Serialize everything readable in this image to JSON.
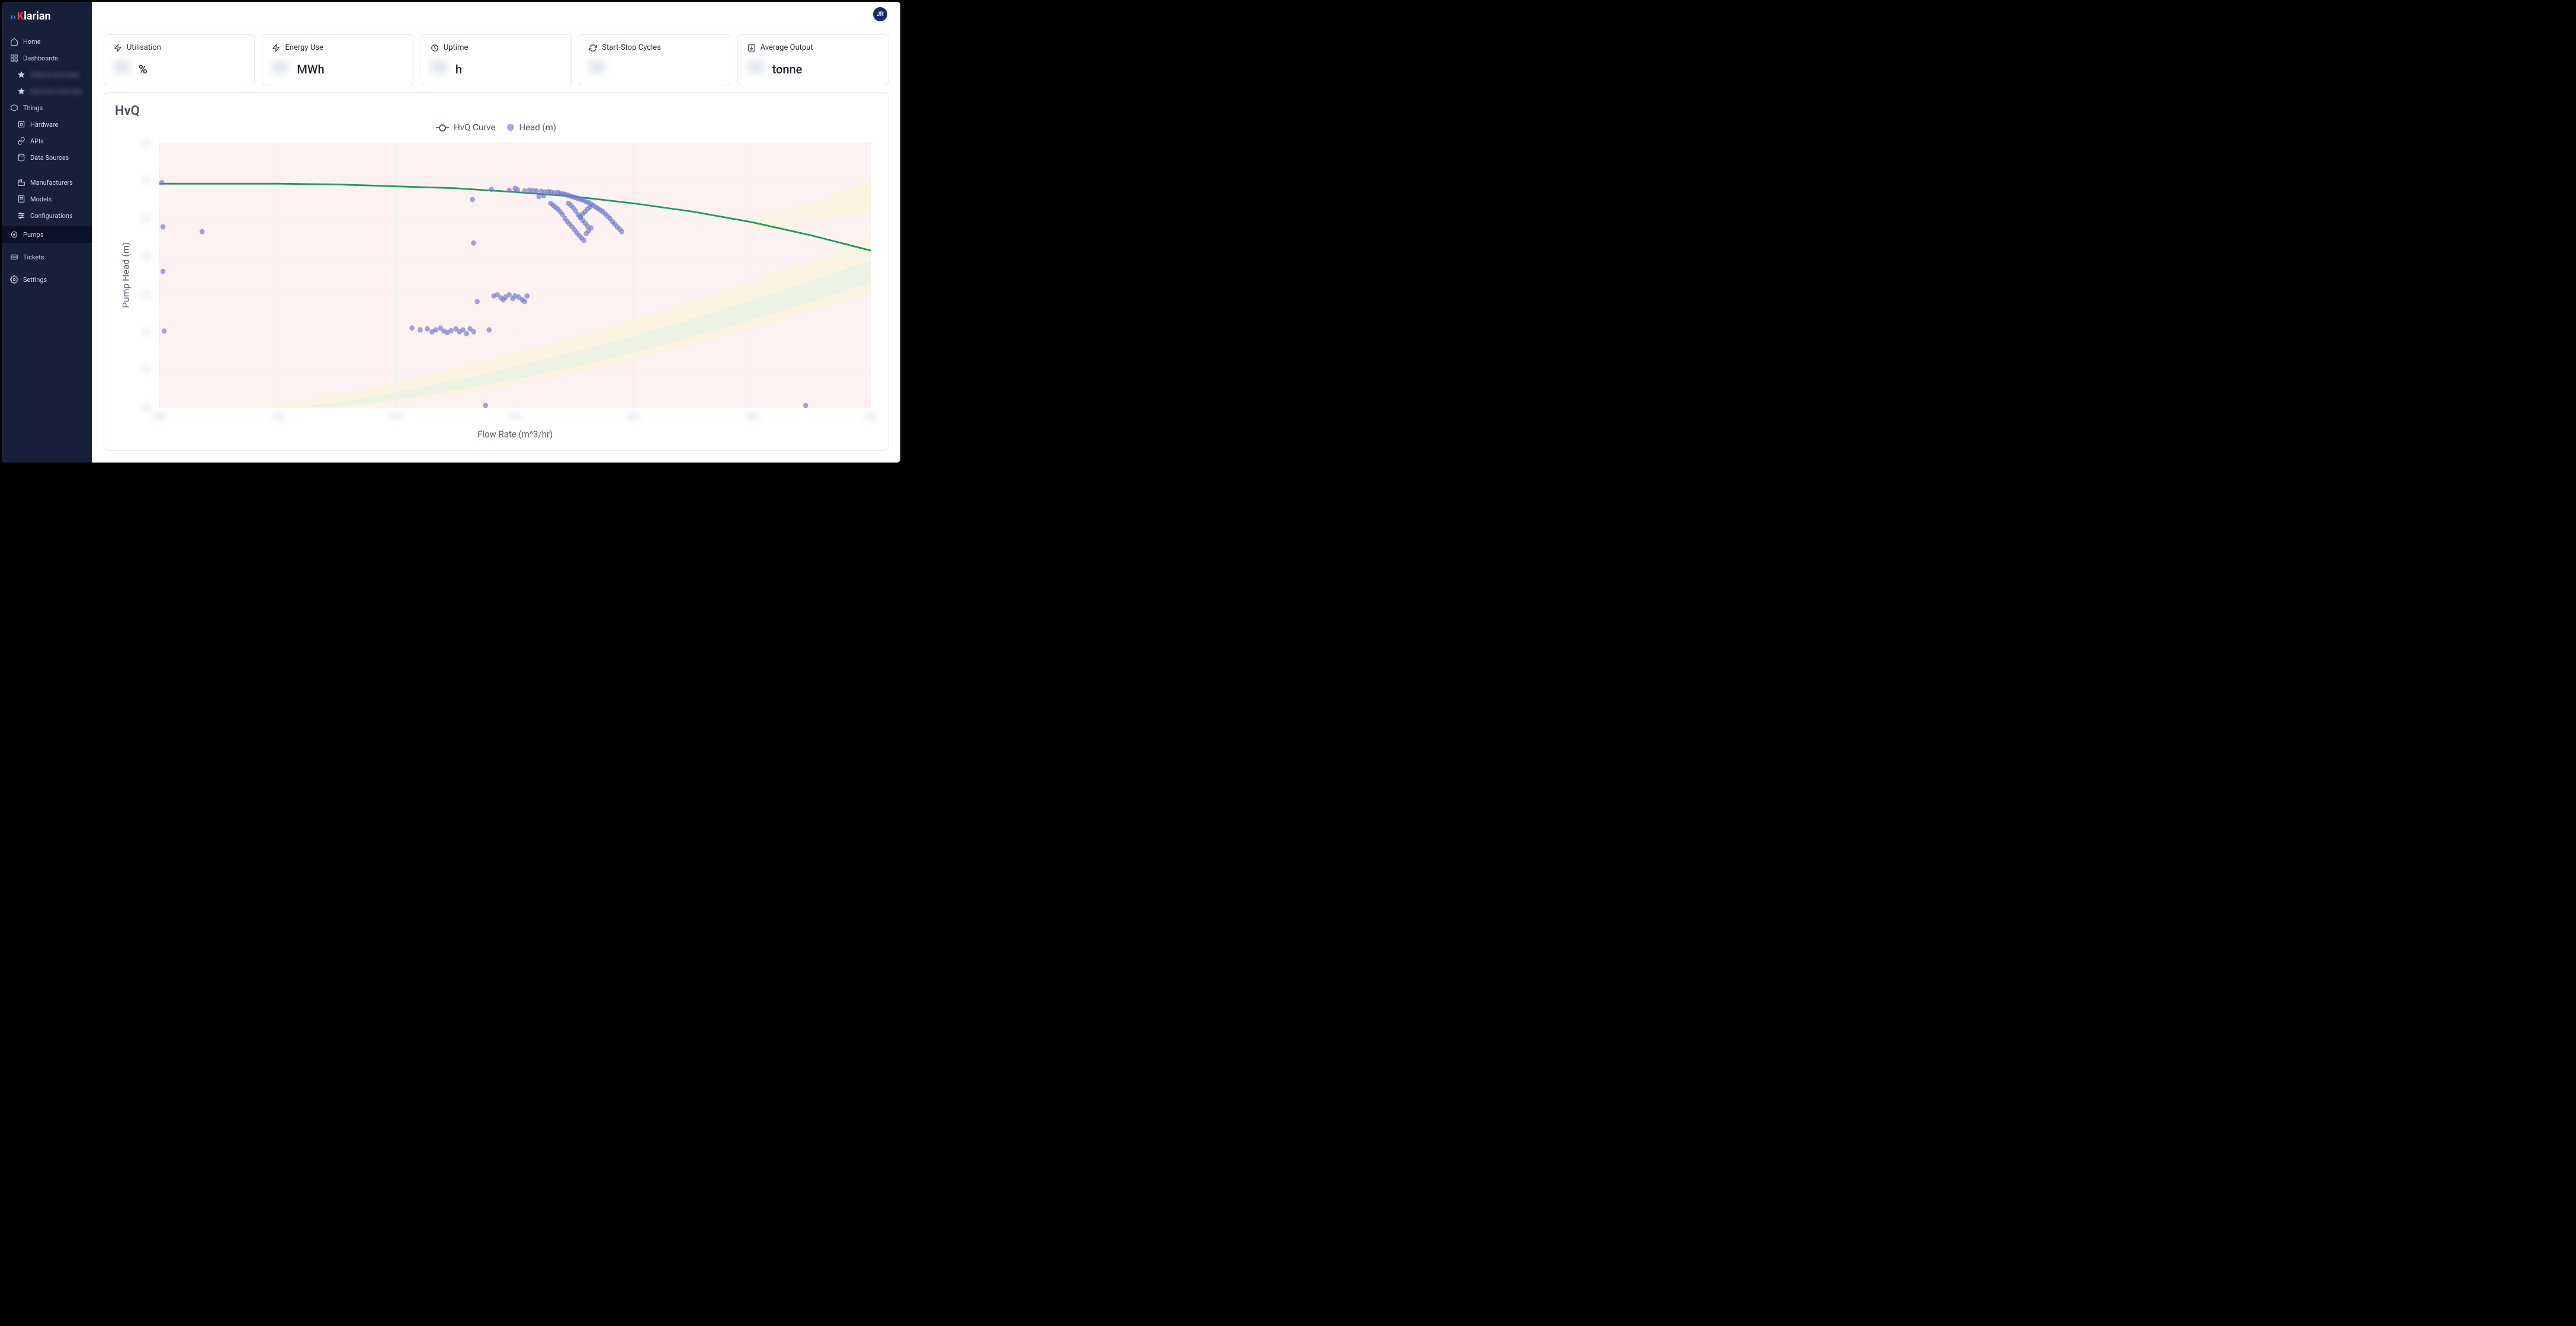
{
  "brand": {
    "name": "Klarian",
    "chev1_color": "#2cc48a",
    "chev2_color": "#3a6df0",
    "k_color": "#e63946"
  },
  "avatar": "JR",
  "sidebar": {
    "items": [
      {
        "icon": "home",
        "label": "Home"
      },
      {
        "icon": "dashboard",
        "label": "Dashboards"
      },
      {
        "icon": "star",
        "label": "Station Overview",
        "sub": true,
        "blurred": true
      },
      {
        "icon": "star",
        "label": "Network Overview",
        "sub": true,
        "blurred": true
      },
      {
        "icon": "things",
        "label": "Things"
      },
      {
        "icon": "hardware",
        "label": "Hardware",
        "sub": true
      },
      {
        "icon": "api",
        "label": "APIs",
        "sub": true
      },
      {
        "icon": "data",
        "label": "Data Sources",
        "sub": true
      },
      {
        "icon": "manufacturers",
        "label": "Manufacturers",
        "sub": true
      },
      {
        "icon": "models",
        "label": "Models",
        "sub": true
      },
      {
        "icon": "config",
        "label": "Configurations",
        "sub": true
      },
      {
        "icon": "pump",
        "label": "Pumps",
        "active": true
      },
      {
        "icon": "ticket",
        "label": "Tickets"
      },
      {
        "icon": "settings",
        "label": "Settings"
      }
    ]
  },
  "metrics": [
    {
      "icon": "bolt",
      "label": "Utilisation",
      "unit": "%"
    },
    {
      "icon": "bolt",
      "label": "Energy Use",
      "unit": "MWh"
    },
    {
      "icon": "clock",
      "label": "Uptime",
      "unit": "h"
    },
    {
      "icon": "cycles",
      "label": "Start-Stop Cycles",
      "unit": ""
    },
    {
      "icon": "output",
      "label": "Average Output",
      "unit": "tonne"
    }
  ],
  "chart": {
    "title": "HvQ",
    "legend": [
      {
        "type": "line",
        "label": "HvQ Curve",
        "color": "#1a9e5c"
      },
      {
        "type": "dot",
        "label": "Head (m)",
        "color": "#a3aee6"
      }
    ],
    "x_label": "Flow Rate (m^3/hr)",
    "y_label": "Pump Head (m)",
    "background_color": "#ffffff",
    "plot_colors": {
      "region_red": "#fbe5e5",
      "region_yellow": "#fcf6d4",
      "region_green": "#dff2e3",
      "grid": "#eef0f4",
      "curve": "#1a9e5c",
      "scatter": "#6b77cf"
    },
    "xlim": [
      0,
      6
    ],
    "ylim": [
      0,
      7
    ],
    "x_ticks": [
      0,
      1,
      2,
      3,
      4,
      5,
      6
    ],
    "y_ticks": [
      0,
      1,
      2,
      3,
      4,
      5,
      6,
      7
    ],
    "curve_points": [
      [
        0,
        5.92
      ],
      [
        0.5,
        5.92
      ],
      [
        1.0,
        5.92
      ],
      [
        1.5,
        5.9
      ],
      [
        2.0,
        5.85
      ],
      [
        2.5,
        5.8
      ],
      [
        3.0,
        5.7
      ],
      [
        3.5,
        5.58
      ],
      [
        4.0,
        5.4
      ],
      [
        4.5,
        5.18
      ],
      [
        5.0,
        4.9
      ],
      [
        5.5,
        4.55
      ],
      [
        6.0,
        4.15
      ]
    ],
    "scatter_points": [
      [
        0.02,
        5.95
      ],
      [
        0.03,
        4.78
      ],
      [
        0.03,
        3.6
      ],
      [
        0.04,
        2.02
      ],
      [
        0.36,
        4.65
      ],
      [
        2.64,
        5.5
      ],
      [
        3.0,
        5.8
      ],
      [
        2.75,
        0.05
      ],
      [
        5.45,
        0.05
      ],
      [
        2.13,
        2.1
      ],
      [
        2.2,
        2.05
      ],
      [
        2.26,
        2.08
      ],
      [
        2.3,
        2.0
      ],
      [
        2.33,
        2.05
      ],
      [
        2.37,
        2.1
      ],
      [
        2.4,
        2.02
      ],
      [
        2.43,
        1.98
      ],
      [
        2.46,
        2.03
      ],
      [
        2.5,
        2.08
      ],
      [
        2.53,
        2.0
      ],
      [
        2.56,
        2.05
      ],
      [
        2.59,
        1.95
      ],
      [
        2.62,
        2.08
      ],
      [
        2.65,
        2.0
      ],
      [
        2.78,
        2.05
      ],
      [
        2.68,
        2.8
      ],
      [
        2.82,
        2.95
      ],
      [
        2.85,
        2.98
      ],
      [
        2.88,
        2.9
      ],
      [
        2.9,
        2.85
      ],
      [
        2.92,
        2.92
      ],
      [
        2.95,
        2.98
      ],
      [
        2.98,
        2.88
      ],
      [
        3.0,
        2.95
      ],
      [
        3.03,
        2.92
      ],
      [
        3.06,
        2.85
      ],
      [
        3.08,
        2.8
      ],
      [
        3.1,
        2.95
      ],
      [
        2.65,
        4.35
      ],
      [
        2.8,
        5.77
      ],
      [
        2.95,
        5.75
      ],
      [
        3.02,
        5.76
      ],
      [
        3.08,
        5.73
      ],
      [
        3.12,
        5.75
      ],
      [
        3.15,
        5.74
      ],
      [
        3.18,
        5.73
      ],
      [
        3.22,
        5.72
      ],
      [
        3.25,
        5.7
      ],
      [
        3.28,
        5.71
      ],
      [
        3.3,
        5.7
      ],
      [
        3.33,
        5.68
      ],
      [
        3.36,
        5.69
      ],
      [
        3.38,
        5.66
      ],
      [
        3.4,
        5.65
      ],
      [
        3.42,
        5.64
      ],
      [
        3.44,
        5.62
      ],
      [
        3.46,
        5.6
      ],
      [
        3.48,
        5.58
      ],
      [
        3.5,
        5.56
      ],
      [
        3.52,
        5.54
      ],
      [
        3.54,
        5.52
      ],
      [
        3.56,
        5.5
      ],
      [
        3.58,
        5.48
      ],
      [
        3.6,
        5.44
      ],
      [
        3.62,
        5.42
      ],
      [
        3.64,
        5.38
      ],
      [
        3.66,
        5.34
      ],
      [
        3.68,
        5.3
      ],
      [
        3.7,
        5.26
      ],
      [
        3.72,
        5.22
      ],
      [
        3.74,
        5.18
      ],
      [
        3.76,
        5.12
      ],
      [
        3.78,
        5.06
      ],
      [
        3.8,
        5.0
      ],
      [
        3.82,
        4.92
      ],
      [
        3.84,
        4.85
      ],
      [
        3.86,
        4.78
      ],
      [
        3.88,
        4.72
      ],
      [
        3.9,
        4.65
      ],
      [
        3.3,
        5.4
      ],
      [
        3.32,
        5.35
      ],
      [
        3.34,
        5.3
      ],
      [
        3.36,
        5.25
      ],
      [
        3.38,
        5.18
      ],
      [
        3.4,
        5.1
      ],
      [
        3.42,
        5.0
      ],
      [
        3.44,
        4.92
      ],
      [
        3.46,
        4.85
      ],
      [
        3.48,
        4.78
      ],
      [
        3.5,
        4.7
      ],
      [
        3.52,
        4.62
      ],
      [
        3.54,
        4.55
      ],
      [
        3.56,
        4.48
      ],
      [
        3.58,
        4.42
      ],
      [
        3.6,
        4.6
      ],
      [
        3.62,
        4.68
      ],
      [
        3.64,
        4.75
      ],
      [
        3.55,
        5.05
      ],
      [
        3.57,
        5.12
      ],
      [
        3.59,
        5.18
      ],
      [
        3.61,
        5.25
      ],
      [
        3.63,
        5.3
      ],
      [
        3.2,
        5.58
      ],
      [
        3.24,
        5.6
      ],
      [
        3.45,
        5.4
      ],
      [
        3.47,
        5.35
      ],
      [
        3.49,
        5.28
      ],
      [
        3.51,
        5.2
      ],
      [
        3.53,
        5.1
      ],
      [
        3.55,
        5.02
      ],
      [
        3.57,
        4.95
      ],
      [
        3.59,
        4.88
      ],
      [
        3.61,
        4.8
      ]
    ],
    "scatter_radius": 4
  }
}
